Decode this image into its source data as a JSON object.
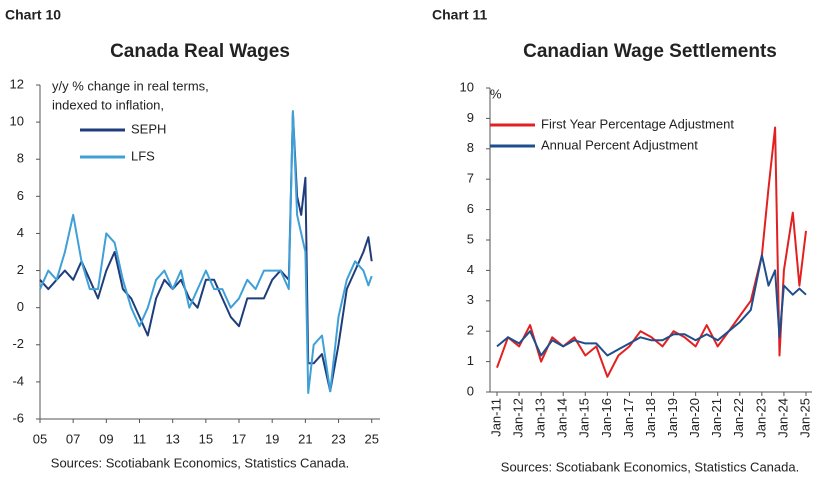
{
  "chart_data": [
    {
      "type": "line",
      "chart_label": "Chart 10",
      "title": "Canada Real Wages",
      "annotation": [
        "y/y % change in real terms,",
        "indexed to inflation,"
      ],
      "source": "Sources: Scotiabank Economics, Statistics Canada.",
      "xlim": [
        2005,
        2025.5
      ],
      "ylim": [
        -6,
        12
      ],
      "yticks": [
        -6,
        -4,
        -2,
        0,
        2,
        4,
        6,
        8,
        10,
        12
      ],
      "xticks": [
        {
          "value": 2005,
          "label": "05"
        },
        {
          "value": 2007,
          "label": "07"
        },
        {
          "value": 2009,
          "label": "09"
        },
        {
          "value": 2011,
          "label": "11"
        },
        {
          "value": 2013,
          "label": "13"
        },
        {
          "value": 2015,
          "label": "15"
        },
        {
          "value": 2017,
          "label": "17"
        },
        {
          "value": 2019,
          "label": "19"
        },
        {
          "value": 2021,
          "label": "21"
        },
        {
          "value": 2023,
          "label": "23"
        },
        {
          "value": 2025,
          "label": "25"
        }
      ],
      "x": [
        2005,
        2005.5,
        2006,
        2006.5,
        2007,
        2007.5,
        2008,
        2008.5,
        2009,
        2009.5,
        2010,
        2010.5,
        2011,
        2011.5,
        2012,
        2012.5,
        2013,
        2013.5,
        2014,
        2014.5,
        2015,
        2015.5,
        2016,
        2016.5,
        2017,
        2017.5,
        2018,
        2018.5,
        2019,
        2019.5,
        2020,
        2020.25,
        2020.5,
        2020.75,
        2021,
        2021.17,
        2021.5,
        2022,
        2022.5,
        2023,
        2023.5,
        2024,
        2024.5,
        2024.8,
        2025
      ],
      "series": [
        {
          "name": "SEPH",
          "color": "#1f3d7a",
          "values": [
            1.5,
            1.0,
            1.5,
            2.0,
            1.5,
            2.5,
            1.5,
            0.5,
            2.0,
            3.0,
            1.0,
            0.5,
            -0.5,
            -1.5,
            0.5,
            1.5,
            1.0,
            1.5,
            0.5,
            0.0,
            1.5,
            1.5,
            0.5,
            -0.5,
            -1.0,
            0.5,
            0.5,
            0.5,
            1.5,
            2.0,
            1.5,
            10.5,
            6,
            5,
            7,
            -3,
            -3,
            -2.5,
            -4.5,
            -2,
            1,
            2,
            3,
            3.8,
            2.5
          ]
        },
        {
          "name": "LFS",
          "color": "#3fa0d8",
          "values": [
            1.0,
            2.0,
            1.5,
            3,
            5,
            2.5,
            1.0,
            1,
            4,
            3.5,
            1.5,
            0,
            -1,
            0,
            1.5,
            2,
            1,
            2,
            0,
            1,
            2,
            1,
            1,
            0,
            0.5,
            1.5,
            1,
            2,
            2,
            2,
            1,
            10.6,
            5,
            4,
            3,
            -4.6,
            -2,
            -1.5,
            -4.5,
            -0.5,
            1.5,
            2.5,
            2,
            1.2,
            1.7
          ]
        }
      ]
    },
    {
      "type": "line",
      "chart_label": "Chart 11",
      "title": "Canadian Wage Settlements",
      "annotation": [
        "%"
      ],
      "source": "Sources: Scotiabank Economics, Statistics Canada.",
      "xlim": [
        2011,
        2025
      ],
      "ylim": [
        0,
        10
      ],
      "yticks": [
        0,
        1,
        2,
        3,
        4,
        5,
        6,
        7,
        8,
        9,
        10
      ],
      "xticks": [
        {
          "value": 2011,
          "label": "Jan-11"
        },
        {
          "value": 2012,
          "label": "Jan-12"
        },
        {
          "value": 2013,
          "label": "Jan-13"
        },
        {
          "value": 2014,
          "label": "Jan-14"
        },
        {
          "value": 2015,
          "label": "Jan-15"
        },
        {
          "value": 2016,
          "label": "Jan-16"
        },
        {
          "value": 2017,
          "label": "Jan-17"
        },
        {
          "value": 2018,
          "label": "Jan-18"
        },
        {
          "value": 2019,
          "label": "Jan-19"
        },
        {
          "value": 2020,
          "label": "Jan-20"
        },
        {
          "value": 2021,
          "label": "Jan-21"
        },
        {
          "value": 2022,
          "label": "Jan-22"
        },
        {
          "value": 2023,
          "label": "Jan-23"
        },
        {
          "value": 2024,
          "label": "Jan-24"
        },
        {
          "value": 2025,
          "label": "Jan-25"
        }
      ],
      "x": [
        2011,
        2011.5,
        2012,
        2012.5,
        2013,
        2013.5,
        2014,
        2014.5,
        2015,
        2015.5,
        2016,
        2016.5,
        2017,
        2017.5,
        2018,
        2018.5,
        2019,
        2019.5,
        2020,
        2020.5,
        2021,
        2021.5,
        2022,
        2022.5,
        2023,
        2023.3,
        2023.6,
        2023.8,
        2024,
        2024.4,
        2024.7,
        2025
      ],
      "series": [
        {
          "name": "First Year Percentage Adjustment",
          "color": "#e32020",
          "values": [
            0.8,
            1.8,
            1.5,
            2.2,
            1.0,
            1.8,
            1.5,
            1.8,
            1.2,
            1.5,
            0.5,
            1.2,
            1.5,
            2.0,
            1.8,
            1.5,
            2.0,
            1.8,
            1.5,
            2.2,
            1.5,
            2.0,
            2.5,
            3.0,
            4.5,
            6.7,
            8.7,
            1.2,
            4.0,
            5.9,
            3.5,
            5.3
          ]
        },
        {
          "name": "Annual Percent Adjustment",
          "color": "#1f4e8c",
          "values": [
            1.5,
            1.8,
            1.6,
            2.0,
            1.2,
            1.7,
            1.5,
            1.7,
            1.6,
            1.6,
            1.2,
            1.4,
            1.6,
            1.8,
            1.7,
            1.7,
            1.9,
            1.9,
            1.7,
            1.9,
            1.7,
            2.0,
            2.3,
            2.7,
            4.5,
            3.5,
            4.0,
            1.8,
            3.5,
            3.2,
            3.4,
            3.2
          ]
        }
      ]
    }
  ]
}
